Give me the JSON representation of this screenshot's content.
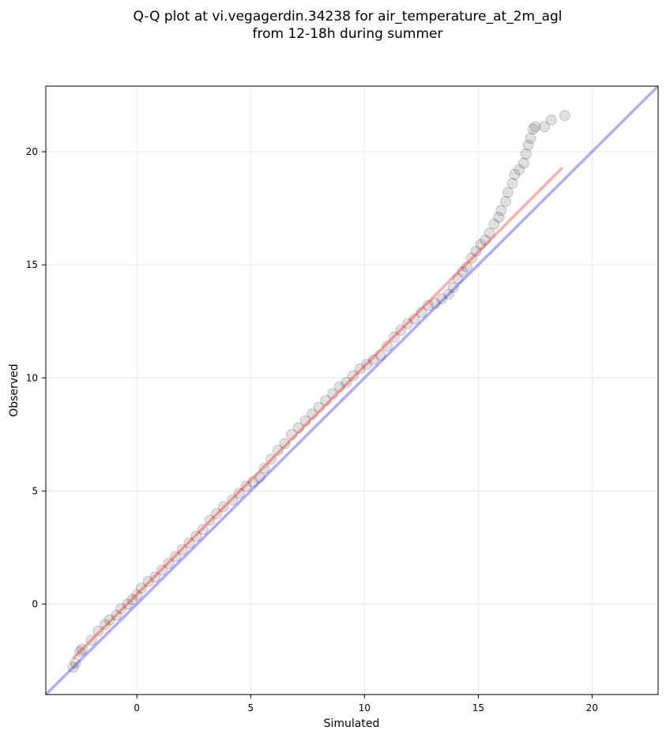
{
  "chart_data": {
    "type": "scatter",
    "title_lines": [
      "Q-Q plot at vi.vegagerdin.34238 for air_temperature_at_2m_agl",
      "from 12-18h during summer"
    ],
    "xlabel": "Simulated",
    "ylabel": "Observed",
    "xlim": [
      -4.0,
      22.9
    ],
    "ylim": [
      -4.0,
      22.9
    ],
    "xticks": [
      0,
      5,
      10,
      15,
      20
    ],
    "yticks": [
      0,
      5,
      10,
      15,
      20
    ],
    "grid": true,
    "quantile_points": [
      [
        -2.8,
        -2.8
      ],
      [
        -2.7,
        -2.6
      ],
      [
        -2.5,
        -2.1
      ],
      [
        -2.4,
        -2.0
      ],
      [
        -2.0,
        -1.6
      ],
      [
        -1.7,
        -1.2
      ],
      [
        -1.4,
        -0.9
      ],
      [
        -1.2,
        -0.7
      ],
      [
        -0.9,
        -0.5
      ],
      [
        -0.7,
        -0.2
      ],
      [
        -0.4,
        0.0
      ],
      [
        -0.2,
        0.2
      ],
      [
        0.0,
        0.4
      ],
      [
        0.2,
        0.7
      ],
      [
        0.5,
        1.0
      ],
      [
        0.8,
        1.2
      ],
      [
        1.1,
        1.5
      ],
      [
        1.4,
        1.8
      ],
      [
        1.7,
        2.1
      ],
      [
        2.0,
        2.4
      ],
      [
        2.3,
        2.7
      ],
      [
        2.6,
        3.0
      ],
      [
        2.9,
        3.3
      ],
      [
        3.2,
        3.7
      ],
      [
        3.5,
        4.0
      ],
      [
        3.8,
        4.3
      ],
      [
        4.2,
        4.6
      ],
      [
        4.5,
        4.9
      ],
      [
        4.8,
        5.2
      ],
      [
        5.1,
        5.4
      ],
      [
        5.4,
        5.6
      ],
      [
        5.6,
        6.0
      ],
      [
        5.9,
        6.4
      ],
      [
        6.2,
        6.8
      ],
      [
        6.5,
        7.1
      ],
      [
        6.8,
        7.5
      ],
      [
        7.1,
        7.8
      ],
      [
        7.4,
        8.1
      ],
      [
        7.7,
        8.4
      ],
      [
        8.0,
        8.7
      ],
      [
        8.3,
        9.0
      ],
      [
        8.6,
        9.3
      ],
      [
        8.9,
        9.6
      ],
      [
        9.2,
        9.8
      ],
      [
        9.5,
        10.1
      ],
      [
        9.8,
        10.4
      ],
      [
        10.1,
        10.6
      ],
      [
        10.4,
        10.8
      ],
      [
        10.7,
        11.0
      ],
      [
        11.0,
        11.4
      ],
      [
        11.3,
        11.8
      ],
      [
        11.6,
        12.1
      ],
      [
        11.9,
        12.4
      ],
      [
        12.2,
        12.6
      ],
      [
        12.5,
        12.9
      ],
      [
        12.8,
        13.2
      ],
      [
        13.1,
        13.3
      ],
      [
        13.4,
        13.5
      ],
      [
        13.7,
        13.7
      ],
      [
        13.9,
        14.0
      ],
      [
        14.1,
        14.4
      ],
      [
        14.3,
        14.7
      ],
      [
        14.5,
        14.9
      ],
      [
        14.7,
        15.3
      ],
      [
        14.9,
        15.6
      ],
      [
        15.1,
        15.9
      ],
      [
        15.3,
        16.1
      ],
      [
        15.5,
        16.4
      ],
      [
        15.7,
        16.8
      ],
      [
        15.9,
        17.1
      ],
      [
        16.0,
        17.4
      ],
      [
        16.2,
        17.8
      ],
      [
        16.3,
        18.2
      ],
      [
        16.5,
        18.6
      ],
      [
        16.6,
        19.0
      ],
      [
        16.8,
        19.2
      ],
      [
        17.0,
        19.5
      ],
      [
        17.1,
        19.9
      ],
      [
        17.2,
        20.3
      ],
      [
        17.3,
        20.6
      ],
      [
        17.4,
        21.0
      ],
      [
        17.5,
        21.1
      ],
      [
        17.9,
        21.1
      ],
      [
        18.2,
        21.4
      ],
      [
        18.8,
        21.6
      ]
    ],
    "reference_line": {
      "name": "1:1",
      "color": "#0000ff",
      "from": [
        -4.0,
        -4.0
      ],
      "to": [
        22.9,
        22.9
      ]
    },
    "fit_line": {
      "color": "#ff0000",
      "from": [
        -2.8,
        -2.4
      ],
      "to": [
        18.7,
        19.3
      ]
    }
  }
}
